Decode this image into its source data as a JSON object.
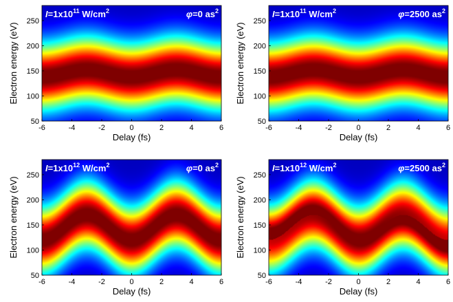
{
  "chart_data": [
    {
      "type": "heatmap",
      "panel": "top-left",
      "xlabel": "Delay (fs)",
      "ylabel": "Electron energy (eV)",
      "xlim": [
        -6,
        6
      ],
      "ylim": [
        50,
        280
      ],
      "xticks": [
        -6,
        -4,
        -2,
        0,
        2,
        4,
        6
      ],
      "yticks": [
        50,
        100,
        150,
        200,
        250
      ],
      "intensity_label": {
        "prefix": "I",
        "text": "=1x10",
        "exp": "11",
        "unit": " W/cm",
        "unit_exp": "2"
      },
      "phase_label": {
        "prefix": "φ",
        "text": "=0 as",
        "exp": "2"
      },
      "colormap": "jet",
      "center_energy_eV": 145,
      "oscillation_amplitude_eV": 7,
      "oscillation_period_fs": 6,
      "oscillation_peak_delays_fs": [
        -3,
        3
      ],
      "energy_width_eV": 45,
      "tilt_eV_per_fs": 0
    },
    {
      "type": "heatmap",
      "panel": "top-right",
      "xlabel": "Delay (fs)",
      "ylabel": "Electron energy (eV)",
      "xlim": [
        -6,
        6
      ],
      "ylim": [
        50,
        280
      ],
      "xticks": [
        -6,
        -4,
        -2,
        0,
        2,
        4,
        6
      ],
      "yticks": [
        50,
        100,
        150,
        200,
        250
      ],
      "intensity_label": {
        "prefix": "I",
        "text": "=1x10",
        "exp": "11",
        "unit": " W/cm",
        "unit_exp": "2"
      },
      "phase_label": {
        "prefix": "φ",
        "text": "=2500 as",
        "exp": "2"
      },
      "colormap": "jet",
      "center_energy_eV": 145,
      "oscillation_amplitude_eV": 7,
      "oscillation_period_fs": 6,
      "oscillation_peak_delays_fs": [
        -3,
        3
      ],
      "energy_width_eV": 45,
      "tilt_eV_per_fs": 0
    },
    {
      "type": "heatmap",
      "panel": "bottom-left",
      "xlabel": "Delay (fs)",
      "ylabel": "Electron energy (eV)",
      "xlim": [
        -6,
        6
      ],
      "ylim": [
        50,
        280
      ],
      "xticks": [
        -6,
        -4,
        -2,
        0,
        2,
        4,
        6
      ],
      "yticks": [
        50,
        100,
        150,
        200,
        250
      ],
      "intensity_label": {
        "prefix": "I",
        "text": "=1x10",
        "exp": "12",
        "unit": " W/cm",
        "unit_exp": "2"
      },
      "phase_label": {
        "prefix": "φ",
        "text": "=0 as",
        "exp": "2"
      },
      "colormap": "jet",
      "center_energy_eV": 145,
      "oscillation_amplitude_eV": 25,
      "oscillation_period_fs": 6,
      "oscillation_peak_delays_fs": [
        -3,
        3
      ],
      "energy_width_eV": 45,
      "tilt_eV_per_fs": 0
    },
    {
      "type": "heatmap",
      "panel": "bottom-right",
      "xlabel": "Delay (fs)",
      "ylabel": "Electron energy (eV)",
      "xlim": [
        -6,
        6
      ],
      "ylim": [
        50,
        280
      ],
      "xticks": [
        -6,
        -4,
        -2,
        0,
        2,
        4,
        6
      ],
      "yticks": [
        50,
        100,
        150,
        200,
        250
      ],
      "intensity_label": {
        "prefix": "I",
        "text": "=1x10",
        "exp": "12",
        "unit": " W/cm",
        "unit_exp": "2"
      },
      "phase_label": {
        "prefix": "φ",
        "text": "=2500 as",
        "exp": "2"
      },
      "colormap": "jet",
      "center_energy_eV": 145,
      "oscillation_amplitude_eV": 25,
      "oscillation_period_fs": 6,
      "oscillation_peak_delays_fs": [
        -3,
        3
      ],
      "energy_width_eV": 45,
      "tilt_eV_per_fs": 3
    }
  ]
}
